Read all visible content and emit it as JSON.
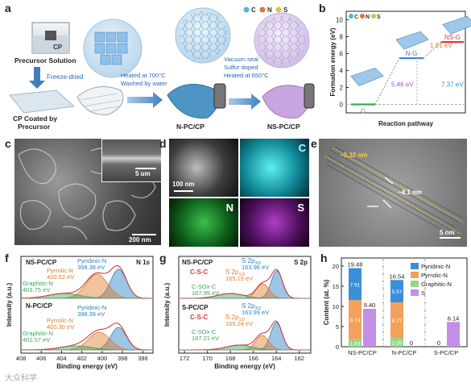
{
  "panel_a": {
    "label": "a",
    "legend": [
      "C",
      "N",
      "S"
    ],
    "legend_colors": [
      "#4fb8d8",
      "#e0733a",
      "#d8c34a"
    ],
    "precursor_label": "CP",
    "precursor_solution": "Precursor Solution",
    "freeze_dried": "Freeze-dried",
    "cp_coated": "CP Coated by\nPrecursor",
    "step1_line1": "Heated at 700°C",
    "step1_line2": "Washed by water",
    "step2_line1": "Vacuum seal",
    "step2_line2": "Sulfur doped",
    "step2_line3": "Heated at 650°C",
    "npc": "N-PC/CP",
    "nspc": "NS-PC/CP"
  },
  "panel_b": {
    "label": "b",
    "legend": [
      "C",
      "N",
      "S"
    ]
  },
  "panel_c": {
    "label": "c",
    "scale_main": "200 nm",
    "scale_inset": "5 um"
  },
  "panel_d": {
    "label": "d",
    "scale": "100 nm",
    "maps": [
      "C",
      "N",
      "S"
    ]
  },
  "panel_e": {
    "label": "e",
    "d_spacing": "~0.32 nm",
    "thickness": "~4.1 nm",
    "scale": "5 nm"
  },
  "panel_f": {
    "label": "f",
    "corner": "N 1s",
    "xlabel": "Binding energy (eV)",
    "ylabel": "Intensity (a.u.)",
    "xticks": [
      "408",
      "406",
      "404",
      "402",
      "400",
      "398",
      "396"
    ],
    "top": {
      "name": "NS-PC/CP",
      "peaks": [
        {
          "name": "Pyridinic-N",
          "ev": "398.38 eV",
          "color": "#2a7fc4"
        },
        {
          "name": "Pyrrolic-N",
          "ev": "400.52 eV",
          "color": "#e07b2a"
        },
        {
          "name": "Graphitic-N",
          "ev": "403.75 eV",
          "color": "#3aa55a"
        }
      ]
    },
    "bottom": {
      "name": "N-PC/CP",
      "peaks": [
        {
          "name": "Pyridinic-N",
          "ev": "398.39 eV",
          "color": "#2a7fc4"
        },
        {
          "name": "Pyrrolic-N",
          "ev": "400.30 eV",
          "color": "#e07b2a"
        },
        {
          "name": "Graphitic-N",
          "ev": "402.57 eV",
          "color": "#3aa55a"
        }
      ]
    }
  },
  "panel_g": {
    "label": "g",
    "corner": "S 2p",
    "xlabel": "Binding energy (eV)",
    "ylabel": "Intensity (a.u.)",
    "xticks": [
      "172",
      "170",
      "168",
      "166",
      "164",
      "162"
    ],
    "top": {
      "name": "NS-PC/CP",
      "cs": "C-S-C",
      "p32": "S 2p3/2",
      "p32_ev": "163.96 eV",
      "p12": "S 2p1/2",
      "p12_ev": "165.19 eV",
      "sox": "C-SOx-C",
      "sox_ev": "167.99 eV"
    },
    "bottom": {
      "name": "S-PC/CP",
      "cs": "C-S-C",
      "p32": "S 2p3/2",
      "p32_ev": "163.99 eV",
      "p12": "S 2p1/2",
      "p12_ev": "165.24 eV",
      "sox": "C-SOx-C",
      "sox_ev": "167.21 eV"
    }
  },
  "panel_h": {
    "label": "h"
  },
  "watermark": "大众科学",
  "chart_data": [
    {
      "type": "line",
      "id": "formation_energy",
      "xlabel": "Reaction pathway",
      "ylabel": "Formation energy (eV)",
      "ylim": [
        -1,
        11
      ],
      "yticks": [
        0,
        2,
        4,
        6,
        8,
        10
      ],
      "levels": [
        {
          "name": "G",
          "value": 0,
          "color": "#2fb34a"
        },
        {
          "name": "N-G",
          "value": 5.46,
          "color": "#3b7fd0"
        },
        {
          "name": "NS-G",
          "value": 7.37,
          "color": "#e0393a"
        }
      ],
      "annotations": [
        {
          "text": "5.46 eV",
          "color": "#9a55c8"
        },
        {
          "text": "1.91 eV",
          "color": "#e07b2a"
        },
        {
          "text": "7.37 eV",
          "color": "#3b8fd0"
        }
      ]
    },
    {
      "type": "bar",
      "id": "content",
      "ylabel": "Content (at. %)",
      "ylim": [
        0,
        22
      ],
      "yticks": [
        0,
        5,
        10,
        15,
        20
      ],
      "categories": [
        "NS-PC/CP",
        "N-PC/CP",
        "S-PC/CP"
      ],
      "series": [
        {
          "name": "Pyridinic-N",
          "color": "#3a8fd8",
          "values": [
            7.91,
            5.57,
            0
          ]
        },
        {
          "name": "Pyrrolic-N",
          "color": "#f2a05a",
          "values": [
            9.74,
            8.77,
            0
          ]
        },
        {
          "name": "Graphitic-N",
          "color": "#9ad48a",
          "values": [
            1.83,
            2.2,
            0
          ]
        },
        {
          "name": "S",
          "color": "#c38fe6",
          "values": [
            9.4,
            0,
            6.14
          ]
        }
      ],
      "totals_n": [
        "19.48",
        "16.54",
        "0"
      ],
      "labels_s": [
        "9.40",
        "0",
        "6.14"
      ],
      "seg_labels": [
        [
          "7.91",
          "9.74",
          "1.83"
        ],
        [
          "5.57",
          "8.77",
          "2.20"
        ]
      ]
    }
  ]
}
